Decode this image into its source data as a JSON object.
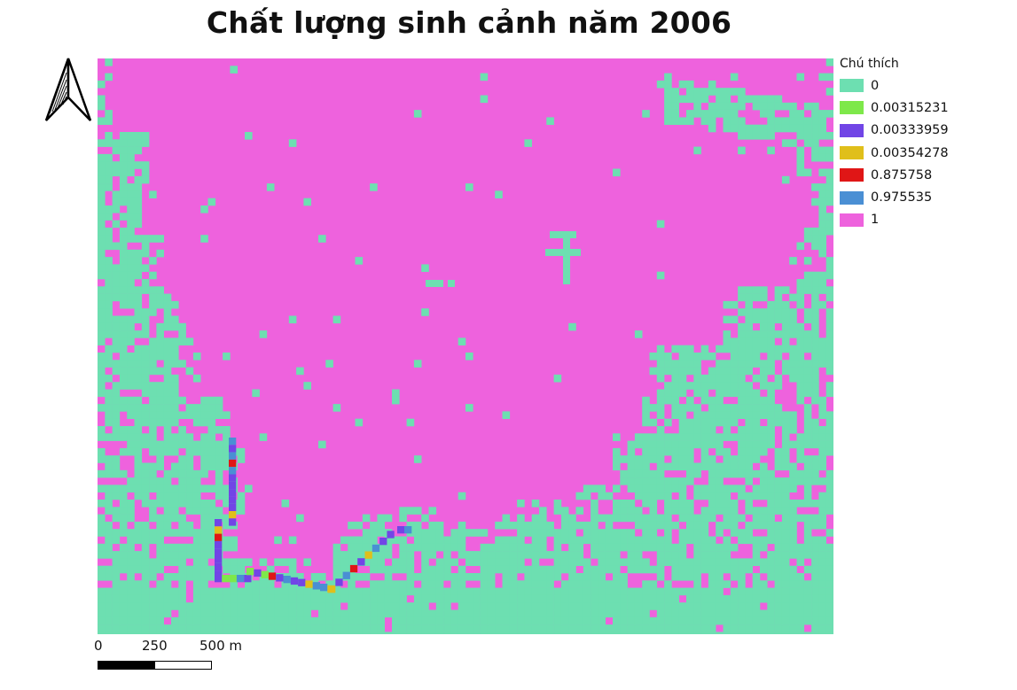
{
  "title": "Chất lượng sinh cảnh năm 2006",
  "legend": {
    "title": "Chú thích",
    "items": [
      {
        "label": "0",
        "color": "#6ddfb1"
      },
      {
        "label": "0.00315231",
        "color": "#7ee84a"
      },
      {
        "label": "0.00333959",
        "color": "#7145e6"
      },
      {
        "label": "0.00354278",
        "color": "#e0bf1a"
      },
      {
        "label": "0.875758",
        "color": "#e01616"
      },
      {
        "label": "0.975535",
        "color": "#4a8fd4"
      },
      {
        "label": "1",
        "color": "#ee62dd"
      }
    ]
  },
  "scalebar": {
    "labels": [
      "0",
      "250",
      "500 m"
    ]
  },
  "north_arrow": "north-arrow-icon"
}
